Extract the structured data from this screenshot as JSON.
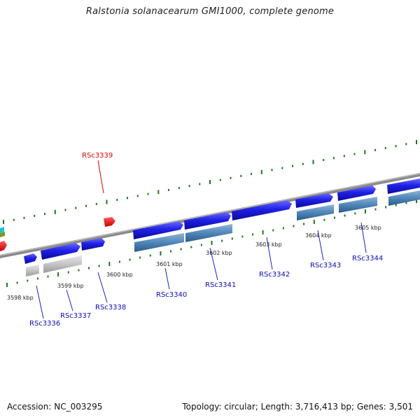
{
  "title": "Ralstonia solanacearum GMI1000, complete genome",
  "footer": {
    "accession": "Accession: NC_003295",
    "summary": "Topology: circular; Length: 3,716,413 bp; Genes: 3,501"
  },
  "colors": {
    "forward_gene": "#1515d8",
    "reverse_gene_mark": "#e11010",
    "cds_bar": "#4f86b8",
    "pseudo_bar": "#c4c4c4",
    "backbone": "#8a8a8a",
    "tick": "#1a7a1a",
    "label_forward": "#0b0bbb",
    "label_reverse": "#dd0000"
  },
  "scale_labels": [
    "3598 kbp",
    "3599 kbp",
    "3600 kbp",
    "3601 kbp",
    "3602 kbp",
    "3603 kbp",
    "3604 kbp",
    "3605 kbp"
  ],
  "genes": [
    {
      "locus": "RSc3336",
      "strand": "forward"
    },
    {
      "locus": "RSc3337",
      "strand": "forward"
    },
    {
      "locus": "RSc3338",
      "strand": "forward"
    },
    {
      "locus": "RSc3339",
      "strand": "reverse"
    },
    {
      "locus": "RSc3340",
      "strand": "forward"
    },
    {
      "locus": "RSc3341",
      "strand": "forward"
    },
    {
      "locus": "RSc3342",
      "strand": "forward"
    },
    {
      "locus": "RSc3343",
      "strand": "forward"
    },
    {
      "locus": "RSc3344",
      "strand": "forward"
    }
  ]
}
